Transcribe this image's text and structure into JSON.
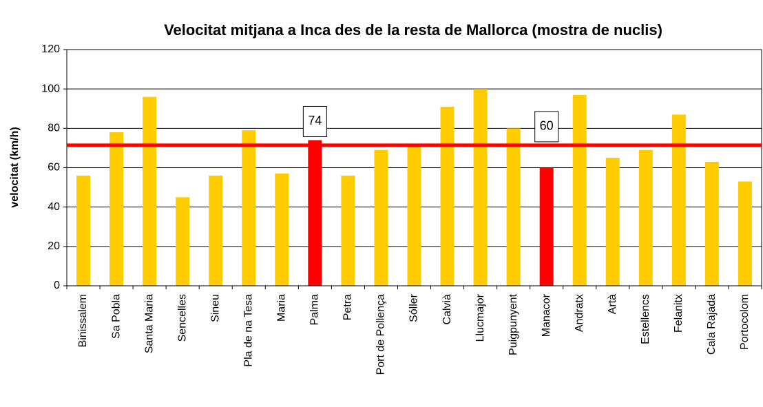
{
  "chart_data": {
    "type": "bar",
    "title": "Velocitat mitjana a Inca des de la resta de Mallorca (mostra de nuclis)",
    "y_label": "velocitat (km/h)",
    "categories": [
      "Binissalem",
      "Sa Pobla",
      "Santa Maria",
      "Sencelles",
      "Sineu",
      "Pla de na Tesa",
      "Maria",
      "Palma",
      "Petra",
      "Port de Pollença",
      "Sóller",
      "Calvià",
      "Llucmajor",
      "Puigpunyent",
      "Manacor",
      "Andratx",
      "Artà",
      "Estellencs",
      "Felanitx",
      "Cala Rajada",
      "Portocolom"
    ],
    "values": [
      56,
      78,
      96,
      45,
      56,
      79,
      57,
      74,
      56,
      69,
      71,
      91,
      100,
      80,
      60,
      97,
      65,
      69,
      87,
      63,
      53
    ],
    "colors": [
      "#ffcc00",
      "#ffcc00",
      "#ffcc00",
      "#ffcc00",
      "#ffcc00",
      "#ffcc00",
      "#ffcc00",
      "#ff0000",
      "#ffcc00",
      "#ffcc00",
      "#ffcc00",
      "#ffcc00",
      "#ffcc00",
      "#ffcc00",
      "#ff0000",
      "#ffcc00",
      "#ffcc00",
      "#ffcc00",
      "#ffcc00",
      "#ffcc00",
      "#ffcc00"
    ],
    "label_color": "#ff0000",
    "reference_line": {
      "value": 71.4,
      "color": "#ff0000"
    },
    "ylim": [
      0,
      120
    ],
    "yticks": [
      0,
      20,
      40,
      60,
      80,
      100,
      120
    ],
    "grid": true
  }
}
